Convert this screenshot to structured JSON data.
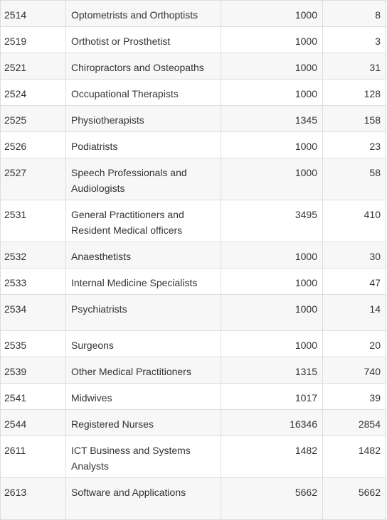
{
  "table": {
    "rows": [
      [
        "2514",
        "Optometrists and Orthoptists",
        "1000",
        "8"
      ],
      [
        "2519",
        "Orthotist or Prosthetist",
        "1000",
        "3"
      ],
      [
        "2521",
        "Chiropractors and Osteopaths",
        "1000",
        "31"
      ],
      [
        "2524",
        "Occupational Therapists",
        "1000",
        "128"
      ],
      [
        "2525",
        "Physiotherapists",
        "1345",
        "158"
      ],
      [
        "2526",
        "Podiatrists",
        "1000",
        "23"
      ],
      [
        "2527",
        "Speech Professionals and Audiologists",
        "1000",
        "58"
      ],
      [
        "2531",
        "General Practitioners and Resident Medical officers",
        "3495",
        "410"
      ],
      [
        "2532",
        "Anaesthetists",
        "1000",
        "30"
      ],
      [
        "2533",
        "Internal Medicine Specialists",
        "1000",
        "47"
      ],
      [
        "2534",
        "Psychiatrists",
        "1000",
        "14"
      ],
      [
        "2535",
        "Surgeons",
        "1000",
        "20"
      ],
      [
        "2539",
        "Other Medical Practitioners",
        "1315",
        "740"
      ],
      [
        "2541",
        "Midwives",
        "1017",
        "39"
      ],
      [
        "2544",
        "Registered Nurses",
        "16346",
        "2854"
      ],
      [
        "2611",
        "ICT Business and Systems Analysts",
        "1482",
        "1482"
      ],
      [
        "2613",
        "Software and Applications",
        "5662",
        "5662"
      ]
    ]
  }
}
